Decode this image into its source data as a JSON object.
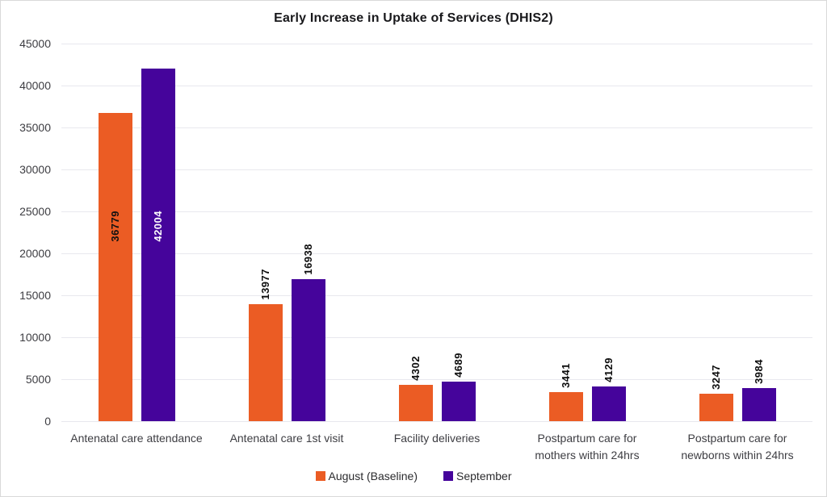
{
  "title": "Early Increase in Uptake of Services (DHIS2)",
  "chart_data": {
    "type": "bar",
    "title": "Early Increase in Uptake of Services (DHIS2)",
    "categories": [
      "Antenatal care attendance",
      "Antenatal care 1st visit",
      "Facility deliveries",
      "Postpartum care for mothers within 24hrs",
      "Postpartum care for newborns within 24hrs"
    ],
    "series": [
      {
        "name": "August (Baseline)",
        "color": "#EB5C24",
        "inside_label_color": "#111111",
        "values": [
          36779,
          13977,
          4302,
          3441,
          3247
        ]
      },
      {
        "name": "September",
        "color": "#45049B",
        "inside_label_color": "#FFFFFF",
        "values": [
          42004,
          16938,
          4689,
          4129,
          3984
        ]
      }
    ],
    "xlabel": "",
    "ylabel": "",
    "ylim": [
      0,
      45000
    ],
    "ytick_step": 5000,
    "yticks": [
      45000,
      40000,
      35000,
      30000,
      25000,
      20000,
      15000,
      10000,
      5000,
      0
    ],
    "grid": true,
    "gridline_color": "#e8e8ee",
    "legend_position": "bottom",
    "value_labels": "rotated-90",
    "outside_label_color": "#0d0d0d"
  }
}
